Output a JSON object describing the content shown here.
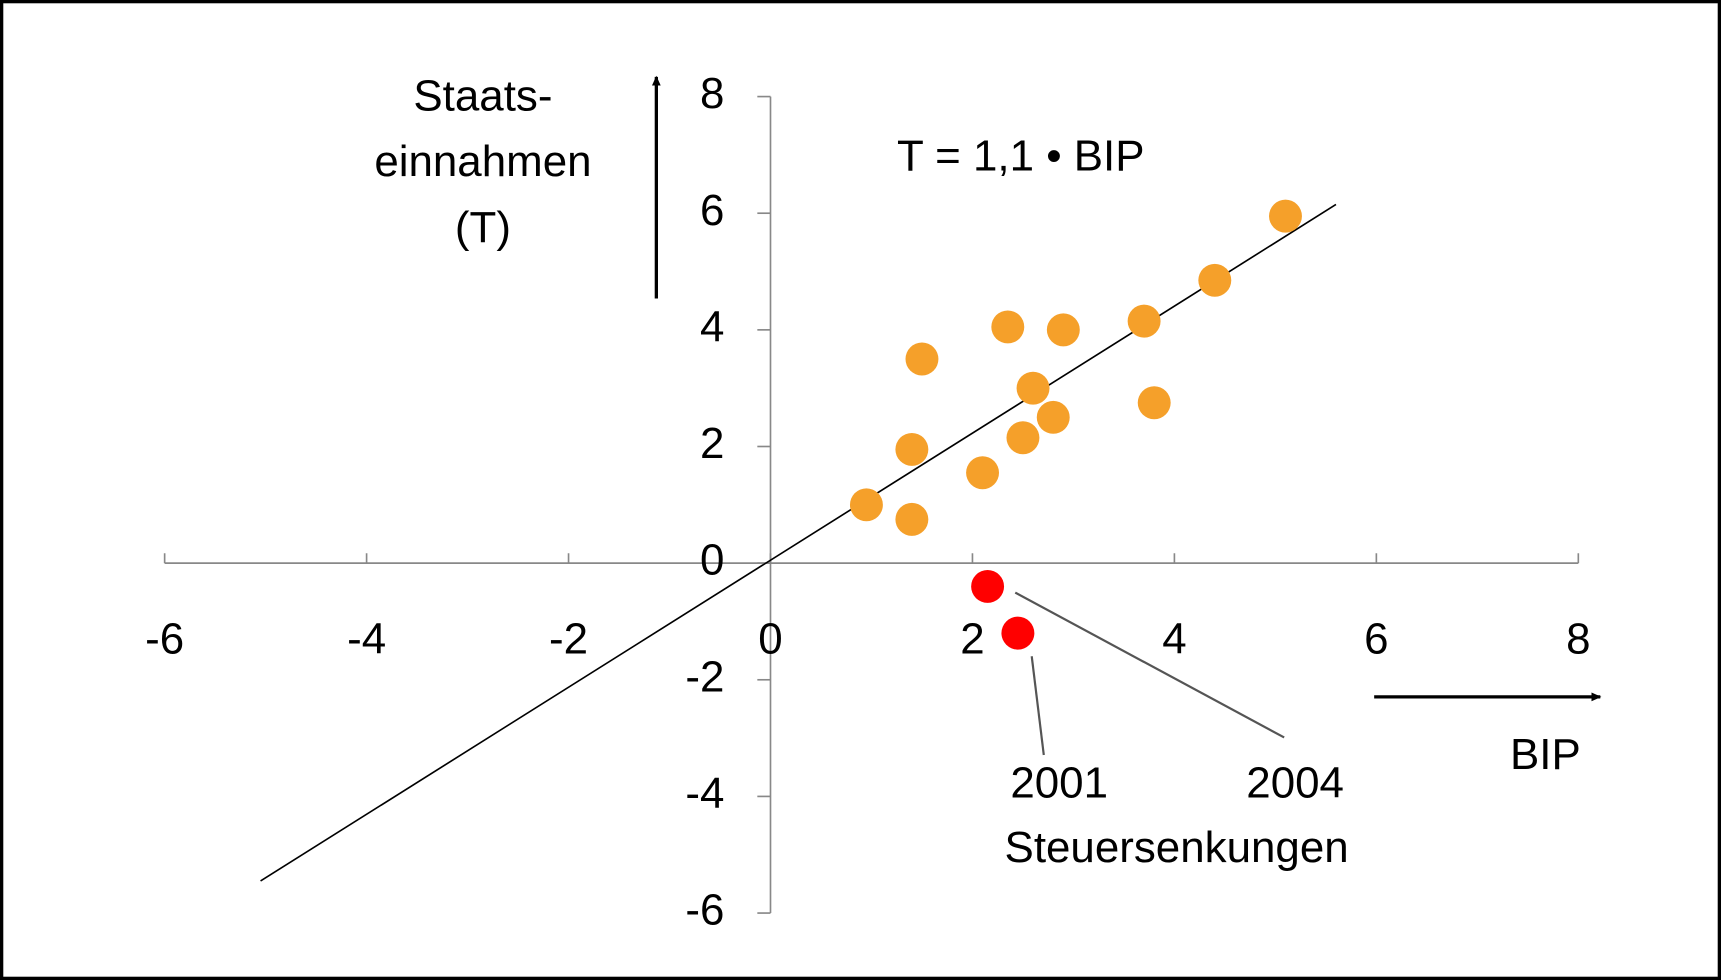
{
  "chart_data": {
    "type": "scatter",
    "ylabel": [
      "Staats-",
      "einnahmen",
      "(T)"
    ],
    "xlabel": "BIP",
    "annotations": [
      "T = 1,1 • BIP",
      "2001",
      "2004",
      "Steuersenkungen"
    ],
    "xlim": [
      -6,
      8
    ],
    "xticks": [
      -6,
      -4,
      -2,
      0,
      2,
      4,
      6,
      8
    ],
    "ylim": [
      -6,
      8
    ],
    "yticks": [
      -6,
      -4,
      -2,
      0,
      2,
      4,
      6,
      8
    ],
    "series": [
      {
        "color": "#f5a02a",
        "x": [
          0.95,
          1.4,
          1.4,
          1.5,
          2.1,
          2.35,
          2.5,
          2.6,
          2.8,
          2.9,
          3.7,
          3.8,
          4.4,
          5.1
        ],
        "values": [
          1.0,
          0.75,
          1.95,
          3.5,
          1.55,
          4.05,
          2.15,
          3.0,
          2.5,
          4.0,
          4.15,
          2.75,
          4.85,
          5.95
        ]
      },
      {
        "color": "#ff0000",
        "x": [
          2.45,
          2.15
        ],
        "values": [
          -1.2,
          -0.4
        ]
      }
    ],
    "fit_line": {
      "color": "#000000",
      "x": [
        -5.05,
        5.6
      ],
      "values": [
        -5.45,
        6.15
      ]
    }
  }
}
